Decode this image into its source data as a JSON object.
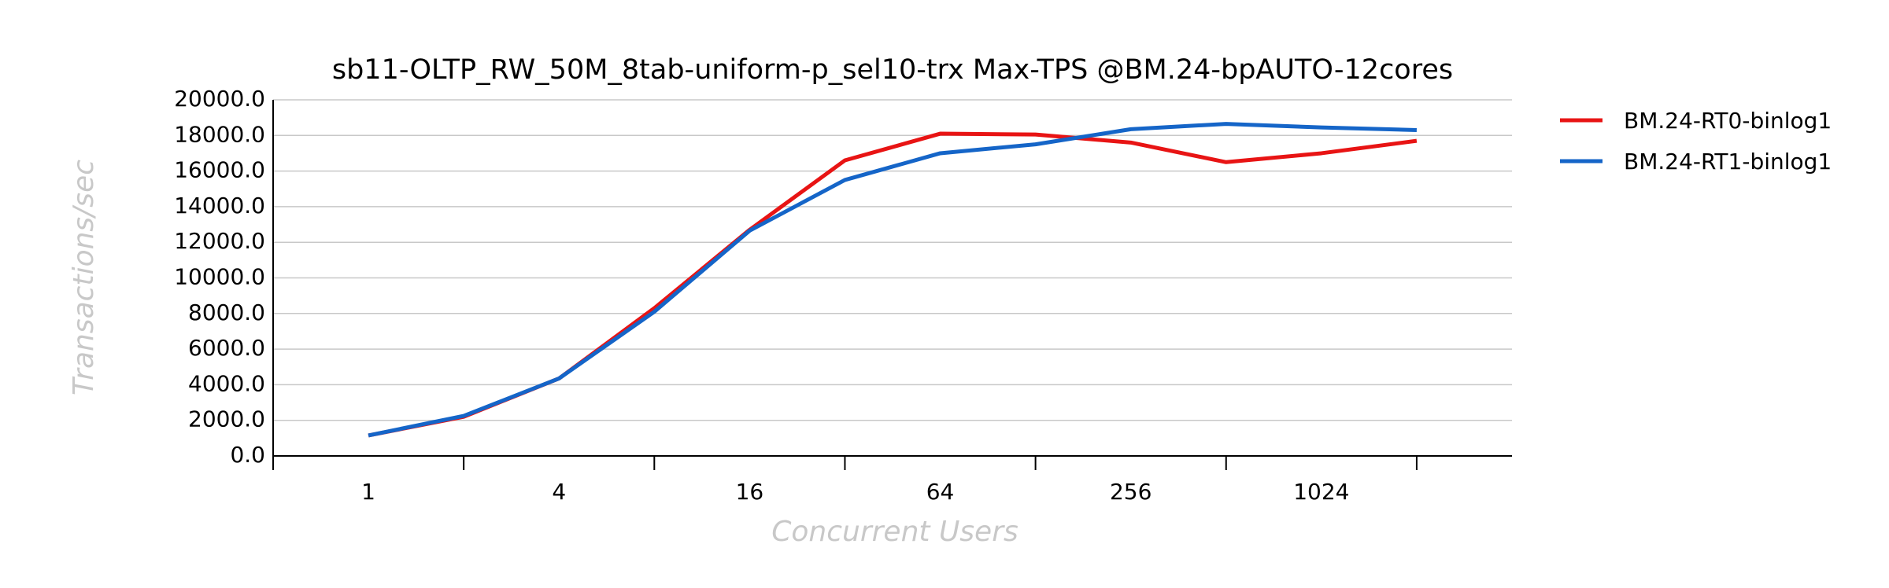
{
  "chart_data": {
    "type": "line",
    "title": "sb11-OLTP_RW_50M_8tab-uniform-p_sel10-trx Max-TPS @BM.24-bpAUTO-12cores",
    "x_label": "Concurrent Users",
    "y_label": "Transactions/sec",
    "categories": [
      "1",
      null,
      "4",
      null,
      "16",
      null,
      "64",
      null,
      "256",
      null,
      "1024",
      null
    ],
    "series": [
      {
        "name": "BM.24-RT0-binlog1",
        "color": "#e81414",
        "values": [
          1150,
          2200,
          4350,
          8300,
          12700,
          16600,
          18100,
          18050,
          17600,
          16500,
          17000,
          17700
        ]
      },
      {
        "name": "BM.24-RT1-binlog1",
        "color": "#1565c8",
        "values": [
          1150,
          2250,
          4350,
          8100,
          12650,
          15500,
          17000,
          17500,
          18350,
          18650,
          18450,
          18300
        ]
      }
    ],
    "ylim": [
      0,
      20000
    ],
    "yticks": [
      {
        "value": 0,
        "label": "0.0"
      },
      {
        "value": 2000,
        "label": "2000.0"
      },
      {
        "value": 4000,
        "label": "4000.0"
      },
      {
        "value": 6000,
        "label": "6000.0"
      },
      {
        "value": 8000,
        "label": "8000.0"
      },
      {
        "value": 10000,
        "label": "10000.0"
      },
      {
        "value": 12000,
        "label": "12000.0"
      },
      {
        "value": 14000,
        "label": "14000.0"
      },
      {
        "value": 16000,
        "label": "16000.0"
      },
      {
        "value": 18000,
        "label": "18000.0"
      },
      {
        "value": 20000,
        "label": "20000.0"
      }
    ],
    "grid": true,
    "legend": "right"
  }
}
